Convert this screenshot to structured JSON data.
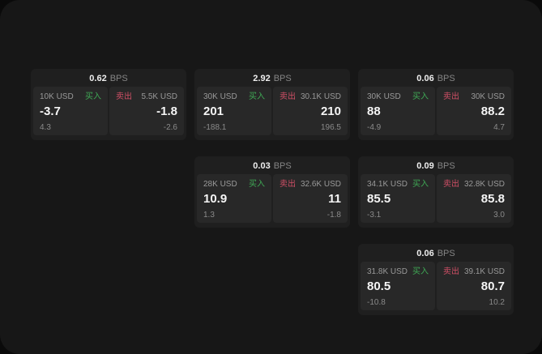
{
  "labels": {
    "bps_unit": "BPS",
    "buy": "买入",
    "sell": "卖出"
  },
  "colors": {
    "buy_accent": "#3fa955",
    "sell_accent": "#d04f66",
    "window_bg": "#171717",
    "card_bg": "#1f1f1f",
    "panel_bg": "#282828"
  },
  "cards": [
    {
      "bps": "0.62",
      "buy": {
        "notional": "10K USD",
        "price": "-3.7",
        "delta": "4.3"
      },
      "sell": {
        "notional": "5.5K USD",
        "price": "-1.8",
        "delta": "-2.6"
      }
    },
    {
      "bps": "2.92",
      "buy": {
        "notional": "30K USD",
        "price": "201",
        "delta": "-188.1"
      },
      "sell": {
        "notional": "30.1K USD",
        "price": "210",
        "delta": "196.5"
      }
    },
    {
      "bps": "0.03",
      "buy": {
        "notional": "28K USD",
        "price": "10.9",
        "delta": "1.3"
      },
      "sell": {
        "notional": "32.6K USD",
        "price": "11",
        "delta": "-1.8"
      }
    },
    {
      "bps": "0.06",
      "buy": {
        "notional": "30K USD",
        "price": "88",
        "delta": "-4.9"
      },
      "sell": {
        "notional": "30K USD",
        "price": "88.2",
        "delta": "4.7"
      }
    },
    {
      "bps": "0.09",
      "buy": {
        "notional": "34.1K USD",
        "price": "85.5",
        "delta": "-3.1"
      },
      "sell": {
        "notional": "32.8K USD",
        "price": "85.8",
        "delta": "3.0"
      }
    },
    {
      "bps": "0.06",
      "buy": {
        "notional": "31.8K USD",
        "price": "80.5",
        "delta": "-10.8"
      },
      "sell": {
        "notional": "39.1K USD",
        "price": "80.7",
        "delta": "10.2"
      }
    }
  ]
}
